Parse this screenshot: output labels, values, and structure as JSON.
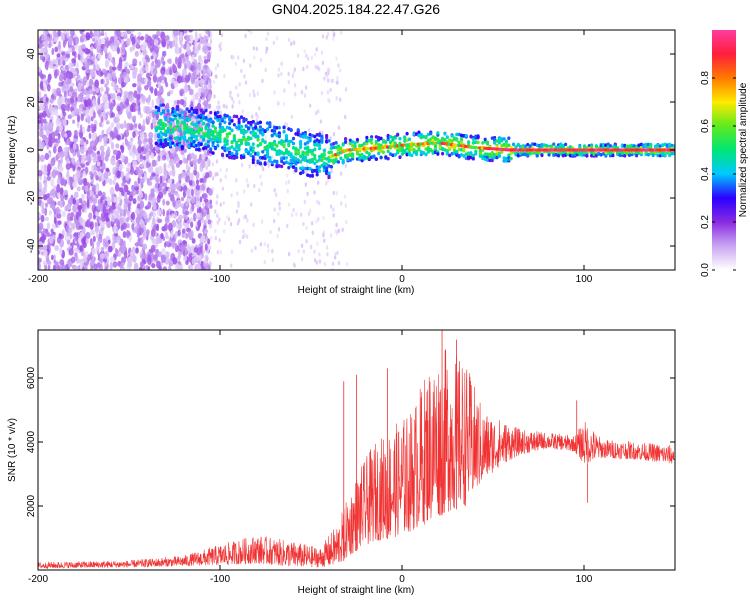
{
  "title": "GN04.2025.184.22.47.G26",
  "chart_data": [
    {
      "type": "heatmap",
      "xlabel": "Height of straight line (km)",
      "ylabel": "Frequency (Hz)",
      "xlim": [
        -200,
        150
      ],
      "ylim": [
        -50,
        50
      ],
      "x_ticks": [
        "-200",
        "-100",
        "0",
        "100"
      ],
      "y_ticks": [
        "-40",
        "-20",
        "0",
        "20",
        "40"
      ],
      "colorbar": {
        "label": "Normalized spectral amplitude",
        "range": [
          0,
          1
        ],
        "ticks": [
          "0.0",
          "0.2",
          "0.4",
          "0.6",
          "0.8"
        ],
        "colors": [
          "#ffffff",
          "#c9a6f2",
          "#8a2be2",
          "#2a00ff",
          "#00c8ff",
          "#00e676",
          "#5eea1e",
          "#ffea00",
          "#ff7a00",
          "#ff1e3c",
          "#ff3ca0"
        ]
      },
      "ridge": [
        {
          "x": -130,
          "y": 10
        },
        {
          "x": -110,
          "y": 8
        },
        {
          "x": -90,
          "y": 5
        },
        {
          "x": -70,
          "y": 2
        },
        {
          "x": -50,
          "y": -2
        },
        {
          "x": -40,
          "y": -3
        },
        {
          "x": -30,
          "y": 0
        },
        {
          "x": -10,
          "y": 1
        },
        {
          "x": 0,
          "y": 2
        },
        {
          "x": 20,
          "y": 3
        },
        {
          "x": 40,
          "y": 1
        },
        {
          "x": 60,
          "y": 0
        },
        {
          "x": 100,
          "y": 0
        },
        {
          "x": 150,
          "y": 0
        }
      ]
    },
    {
      "type": "line",
      "xlabel": "Height of straight line (km)",
      "ylabel": "SNR (10 * v/v)",
      "xlim": [
        -200,
        150
      ],
      "ylim": [
        0,
        7500
      ],
      "x_ticks": [
        "-200",
        "-100",
        "0",
        "100"
      ],
      "y_ticks": [
        "2000",
        "4000",
        "6000"
      ],
      "color": "#f03232",
      "envelope": [
        {
          "x": -200,
          "lo": 50,
          "hi": 250
        },
        {
          "x": -150,
          "lo": 80,
          "hi": 300
        },
        {
          "x": -120,
          "lo": 120,
          "hi": 450
        },
        {
          "x": -100,
          "lo": 150,
          "hi": 800
        },
        {
          "x": -80,
          "lo": 200,
          "hi": 1100
        },
        {
          "x": -60,
          "lo": 100,
          "hi": 900
        },
        {
          "x": -45,
          "lo": 80,
          "hi": 700
        },
        {
          "x": -35,
          "lo": 150,
          "hi": 1500
        },
        {
          "x": -25,
          "lo": 600,
          "hi": 3000
        },
        {
          "x": -15,
          "lo": 900,
          "hi": 4000
        },
        {
          "x": -5,
          "lo": 1000,
          "hi": 4500
        },
        {
          "x": 5,
          "lo": 1200,
          "hi": 5000
        },
        {
          "x": 15,
          "lo": 1500,
          "hi": 6500
        },
        {
          "x": 25,
          "lo": 1800,
          "hi": 7000
        },
        {
          "x": 35,
          "lo": 2000,
          "hi": 6500
        },
        {
          "x": 45,
          "lo": 2800,
          "hi": 5000
        },
        {
          "x": 55,
          "lo": 3300,
          "hi": 4700
        },
        {
          "x": 65,
          "lo": 3600,
          "hi": 4400
        },
        {
          "x": 80,
          "lo": 3800,
          "hi": 4300
        },
        {
          "x": 95,
          "lo": 3700,
          "hi": 4200
        },
        {
          "x": 100,
          "lo": 3300,
          "hi": 4700
        },
        {
          "x": 110,
          "lo": 3500,
          "hi": 4100
        },
        {
          "x": 130,
          "lo": 3450,
          "hi": 4000
        },
        {
          "x": 150,
          "lo": 3300,
          "hi": 3900
        }
      ],
      "spikes": [
        {
          "x": -32,
          "y": 5900
        },
        {
          "x": -25,
          "y": 6100
        },
        {
          "x": -8,
          "y": 6300
        },
        {
          "x": 22,
          "y": 7500
        },
        {
          "x": 30,
          "y": 7200
        },
        {
          "x": 96,
          "y": 5300
        },
        {
          "x": 102,
          "y": 2100
        }
      ]
    }
  ]
}
